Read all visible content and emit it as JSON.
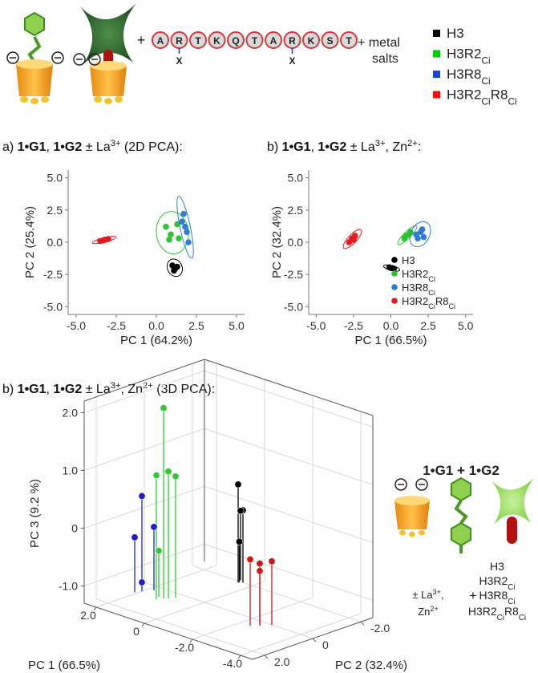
{
  "header": {
    "plus": "+",
    "peptide": [
      "A",
      "R",
      "T",
      "K",
      "Q",
      "T",
      "A",
      "R",
      "K",
      "S",
      "T"
    ],
    "modification_marks": [
      "X",
      "X"
    ],
    "reagent_lines": [
      "+ metal",
      "salts"
    ],
    "legend": [
      {
        "name": "H3",
        "color": "#000000"
      },
      {
        "name": "H3R2Ci",
        "color": "#00cc00"
      },
      {
        "name": "H3R8Ci",
        "color": "#1f44cc"
      },
      {
        "name": "H3R2CiR8Ci",
        "color": "#ee1111"
      }
    ]
  },
  "chart_data": [
    {
      "type": "scatter",
      "title": "a) 1•G1, 1•G2 ± La3+ (2D PCA):",
      "xlabel": "PC 1 (64.2%)",
      "ylabel": "PC 2 (25.4%)",
      "xlim": [
        -5.5,
        5.5
      ],
      "ylim": [
        -5.6,
        5.6
      ],
      "xticks": [
        {
          "value": -5,
          "label": "-5.0"
        },
        -2.5,
        {
          "value": 0,
          "label": "0.0"
        },
        2.5,
        {
          "value": 5,
          "label": "5.0"
        }
      ],
      "yticks": [
        {
          "value": -5,
          "label": "-5.0"
        },
        -2.5,
        {
          "value": 0,
          "label": "0.0"
        },
        2.5,
        {
          "value": 5,
          "label": "5.0"
        }
      ],
      "confidence_ellipses": true,
      "series": [
        {
          "color": "#000000",
          "x": [
            1.0,
            1.2,
            1.1,
            1.3
          ],
          "values": [
            -1.8,
            -2.0,
            -2.2,
            -1.9
          ]
        },
        {
          "color": "#2fc42f",
          "x": [
            0.6,
            1.3,
            0.9,
            1.4,
            0.8
          ],
          "values": [
            1.2,
            1.4,
            0.6,
            0.3,
            0.2
          ]
        },
        {
          "color": "#2f7bd6",
          "x": [
            1.7,
            1.8,
            1.9,
            2.0,
            1.6
          ],
          "values": [
            2.2,
            1.2,
            0.8,
            0.0,
            1.6
          ]
        },
        {
          "color": "#e8191c",
          "x": [
            -3.5,
            -3.2,
            -3.0,
            -3.3
          ],
          "values": [
            0.1,
            0.2,
            0.25,
            0.15
          ]
        }
      ]
    },
    {
      "type": "scatter",
      "title": "b) 1•G1, 1•G2 ± La3+, Zn2+:",
      "xlabel": "PC 1 (66.5%)",
      "ylabel": "PC 2 (32.4%)",
      "xlim": [
        -5.5,
        5.5
      ],
      "ylim": [
        -5.6,
        5.6
      ],
      "xticks": [
        {
          "value": -5,
          "label": "-5.0"
        },
        -2.5,
        {
          "value": 0,
          "label": "0.0"
        },
        2.5,
        {
          "value": 5,
          "label": "5.0"
        }
      ],
      "yticks": [
        {
          "value": -5,
          "label": "-5.0"
        },
        -2.5,
        {
          "value": 0,
          "label": "0.0"
        },
        2.5,
        {
          "value": 5,
          "label": "5.0"
        }
      ],
      "confidence_ellipses": true,
      "legend": "lower right",
      "series": [
        {
          "name": "H3",
          "color": "#000000",
          "x": [
            0.0,
            0.2,
            -0.1,
            0.1
          ],
          "values": [
            -2.0,
            -2.05,
            -1.95,
            -2.0
          ]
        },
        {
          "name": "H3R2Ci",
          "color": "#2fc42f",
          "x": [
            0.9,
            1.2,
            1.0,
            1.3
          ],
          "values": [
            0.3,
            0.6,
            0.5,
            0.8
          ]
        },
        {
          "name": "H3R8Ci",
          "color": "#2f7bd6",
          "x": [
            1.7,
            2.0,
            1.8,
            2.2,
            2.1
          ],
          "values": [
            0.6,
            0.8,
            0.3,
            0.4,
            1.0
          ]
        },
        {
          "name": "H3R2CiR8Ci",
          "color": "#e8191c",
          "x": [
            -2.8,
            -2.6,
            -2.4,
            -2.5
          ],
          "values": [
            0.0,
            0.3,
            0.5,
            0.2
          ]
        }
      ]
    },
    {
      "type": "scatter3d",
      "title": "b) 1•G1, 1•G2 ± La3+, Zn2+ (3D PCA):",
      "xlabel": "PC 1 (66.5%)",
      "ylabel": "PC 2 (32.4%)",
      "zlabel": "PC 3 (9.2 %)",
      "xlim": [
        -4.5,
        2.5
      ],
      "ylim": [
        -2.5,
        2.5
      ],
      "zlim": [
        -1.3,
        2.2
      ],
      "xticks": [
        {
          "value": 2,
          "label": "2.0"
        },
        0,
        {
          "value": -2,
          "label": "-2.0"
        },
        {
          "value": -4,
          "label": "-4.0"
        }
      ],
      "yticks": [
        {
          "value": -2,
          "label": "-2.0"
        },
        0,
        {
          "value": 2,
          "label": "2.0"
        }
      ],
      "zticks": [
        {
          "value": 2,
          "label": "2.0"
        },
        {
          "value": 1,
          "label": "1.0"
        },
        0,
        {
          "value": -1,
          "label": "-1.0"
        }
      ],
      "grid": true,
      "series": [
        {
          "color": "#000000",
          "x": [
            0.5,
            0.4,
            0.6,
            0.5
          ],
          "y": [
            -1.9,
            -2.0,
            -2.1,
            -1.95
          ],
          "values": [
            0.4,
            -0.05,
            -0.1,
            -0.6
          ]
        },
        {
          "color": "#2ecc2e",
          "x": [
            1.1,
            1.0,
            1.2,
            0.9,
            1.3
          ],
          "y": [
            0.6,
            0.5,
            0.8,
            0.3,
            0.6
          ],
          "values": [
            2.0,
            0.9,
            0.85,
            0.8,
            -0.5
          ]
        },
        {
          "color": "#1f1fc8",
          "x": [
            2.0,
            1.8,
            2.1,
            2.2
          ],
          "y": [
            0.6,
            0.3,
            0.8,
            0.4
          ],
          "values": [
            0.35,
            -0.2,
            -0.35,
            -1.2
          ]
        },
        {
          "color": "#cc1a1a",
          "x": [
            -2.6,
            -2.8,
            -2.4,
            -2.5
          ],
          "y": [
            0.3,
            0.0,
            0.5,
            0.2
          ],
          "values": [
            -0.35,
            -0.2,
            -0.15,
            -0.25
          ]
        }
      ]
    }
  ],
  "schematic": {
    "title": "1•G1 + 1•G2",
    "metals": [
      "± La3+,",
      "Zn2+"
    ],
    "plus": "+",
    "peptides": [
      "H3",
      "H3R2Ci",
      "H3R8Ci",
      "H3R2CiR8Ci"
    ]
  }
}
